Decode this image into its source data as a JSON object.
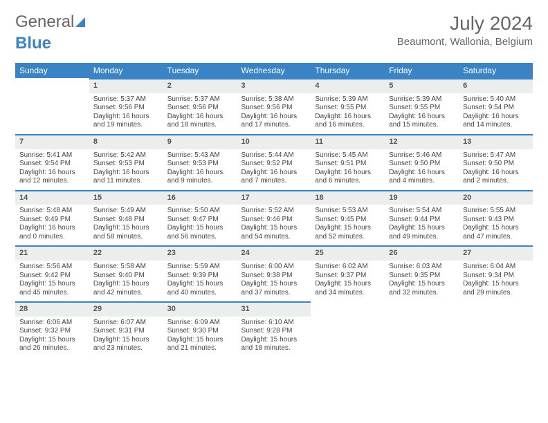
{
  "logo": {
    "general": "General",
    "blue": "Blue"
  },
  "title": "July 2024",
  "location": "Beaumont, Wallonia, Belgium",
  "calendar": {
    "header_bg": "#3a84c5",
    "header_fg": "#ffffff",
    "daynum_bg": "#eceeee",
    "divider_color": "#3a84c5",
    "background": "#ffffff",
    "text_color": "#444444",
    "fontsize_header": 12,
    "fontsize_daynum": 11,
    "fontsize_body": 10,
    "columns": [
      "Sunday",
      "Monday",
      "Tuesday",
      "Wednesday",
      "Thursday",
      "Friday",
      "Saturday"
    ],
    "weeks": [
      [
        {
          "n": "",
          "sr": "",
          "ss": "",
          "dl": ""
        },
        {
          "n": "1",
          "sr": "5:37 AM",
          "ss": "9:56 PM",
          "dl": "16 hours and 19 minutes."
        },
        {
          "n": "2",
          "sr": "5:37 AM",
          "ss": "9:56 PM",
          "dl": "16 hours and 18 minutes."
        },
        {
          "n": "3",
          "sr": "5:38 AM",
          "ss": "9:56 PM",
          "dl": "16 hours and 17 minutes."
        },
        {
          "n": "4",
          "sr": "5:39 AM",
          "ss": "9:55 PM",
          "dl": "16 hours and 16 minutes."
        },
        {
          "n": "5",
          "sr": "5:39 AM",
          "ss": "9:55 PM",
          "dl": "16 hours and 15 minutes."
        },
        {
          "n": "6",
          "sr": "5:40 AM",
          "ss": "9:54 PM",
          "dl": "16 hours and 14 minutes."
        }
      ],
      [
        {
          "n": "7",
          "sr": "5:41 AM",
          "ss": "9:54 PM",
          "dl": "16 hours and 12 minutes."
        },
        {
          "n": "8",
          "sr": "5:42 AM",
          "ss": "9:53 PM",
          "dl": "16 hours and 11 minutes."
        },
        {
          "n": "9",
          "sr": "5:43 AM",
          "ss": "9:53 PM",
          "dl": "16 hours and 9 minutes."
        },
        {
          "n": "10",
          "sr": "5:44 AM",
          "ss": "9:52 PM",
          "dl": "16 hours and 7 minutes."
        },
        {
          "n": "11",
          "sr": "5:45 AM",
          "ss": "9:51 PM",
          "dl": "16 hours and 6 minutes."
        },
        {
          "n": "12",
          "sr": "5:46 AM",
          "ss": "9:50 PM",
          "dl": "16 hours and 4 minutes."
        },
        {
          "n": "13",
          "sr": "5:47 AM",
          "ss": "9:50 PM",
          "dl": "16 hours and 2 minutes."
        }
      ],
      [
        {
          "n": "14",
          "sr": "5:48 AM",
          "ss": "9:49 PM",
          "dl": "16 hours and 0 minutes."
        },
        {
          "n": "15",
          "sr": "5:49 AM",
          "ss": "9:48 PM",
          "dl": "15 hours and 58 minutes."
        },
        {
          "n": "16",
          "sr": "5:50 AM",
          "ss": "9:47 PM",
          "dl": "15 hours and 56 minutes."
        },
        {
          "n": "17",
          "sr": "5:52 AM",
          "ss": "9:46 PM",
          "dl": "15 hours and 54 minutes."
        },
        {
          "n": "18",
          "sr": "5:53 AM",
          "ss": "9:45 PM",
          "dl": "15 hours and 52 minutes."
        },
        {
          "n": "19",
          "sr": "5:54 AM",
          "ss": "9:44 PM",
          "dl": "15 hours and 49 minutes."
        },
        {
          "n": "20",
          "sr": "5:55 AM",
          "ss": "9:43 PM",
          "dl": "15 hours and 47 minutes."
        }
      ],
      [
        {
          "n": "21",
          "sr": "5:56 AM",
          "ss": "9:42 PM",
          "dl": "15 hours and 45 minutes."
        },
        {
          "n": "22",
          "sr": "5:58 AM",
          "ss": "9:40 PM",
          "dl": "15 hours and 42 minutes."
        },
        {
          "n": "23",
          "sr": "5:59 AM",
          "ss": "9:39 PM",
          "dl": "15 hours and 40 minutes."
        },
        {
          "n": "24",
          "sr": "6:00 AM",
          "ss": "9:38 PM",
          "dl": "15 hours and 37 minutes."
        },
        {
          "n": "25",
          "sr": "6:02 AM",
          "ss": "9:37 PM",
          "dl": "15 hours and 34 minutes."
        },
        {
          "n": "26",
          "sr": "6:03 AM",
          "ss": "9:35 PM",
          "dl": "15 hours and 32 minutes."
        },
        {
          "n": "27",
          "sr": "6:04 AM",
          "ss": "9:34 PM",
          "dl": "15 hours and 29 minutes."
        }
      ],
      [
        {
          "n": "28",
          "sr": "6:06 AM",
          "ss": "9:32 PM",
          "dl": "15 hours and 26 minutes."
        },
        {
          "n": "29",
          "sr": "6:07 AM",
          "ss": "9:31 PM",
          "dl": "15 hours and 23 minutes."
        },
        {
          "n": "30",
          "sr": "6:09 AM",
          "ss": "9:30 PM",
          "dl": "15 hours and 21 minutes."
        },
        {
          "n": "31",
          "sr": "6:10 AM",
          "ss": "9:28 PM",
          "dl": "15 hours and 18 minutes."
        },
        {
          "n": "",
          "sr": "",
          "ss": "",
          "dl": ""
        },
        {
          "n": "",
          "sr": "",
          "ss": "",
          "dl": ""
        },
        {
          "n": "",
          "sr": "",
          "ss": "",
          "dl": ""
        }
      ]
    ],
    "labels": {
      "sunrise": "Sunrise:",
      "sunset": "Sunset:",
      "daylight": "Daylight:"
    }
  }
}
